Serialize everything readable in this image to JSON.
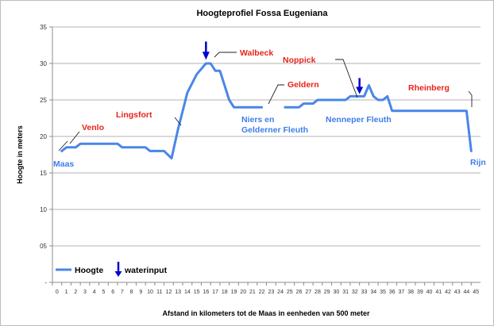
{
  "chart_data": {
    "type": "line",
    "title": "Hoogteprofiel Fossa Eugeniana",
    "xlabel": "Afstand in kilometers tot de Maas in eenheden van 500 meter",
    "ylabel": "Hoogte in meters",
    "xlim": [
      0,
      46
    ],
    "ylim": [
      0,
      35
    ],
    "x_ticks": [
      "0",
      "1",
      "2",
      "3",
      "4",
      "5",
      "6",
      "7",
      "8",
      "9",
      "10",
      "11",
      "12",
      "13",
      "14",
      "15",
      "16",
      "17",
      "18",
      "19",
      "20",
      "21",
      "22",
      "23",
      "24",
      "25",
      "26",
      "27",
      "28",
      "29",
      "30",
      "31",
      "32",
      "33",
      "34",
      "35",
      "36",
      "37",
      "38",
      "39",
      "40",
      "41",
      "42",
      "43",
      "44",
      "45"
    ],
    "y_ticks": [
      {
        "value": 0,
        "label": "-"
      },
      {
        "value": 5,
        "label": "05"
      },
      {
        "value": 10,
        "label": "10"
      },
      {
        "value": 15,
        "label": "15"
      },
      {
        "value": 20,
        "label": "20"
      },
      {
        "value": 25,
        "label": "25"
      },
      {
        "value": 30,
        "label": "30"
      },
      {
        "value": 35,
        "label": "35"
      }
    ],
    "grid": "horizontal",
    "line_color": "#4a86e8",
    "arrow_color": "#0000cc",
    "series": [
      {
        "name": "Hoogte",
        "segments": [
          [
            [
              1,
              18
            ],
            [
              1.5,
              18.5
            ],
            [
              2.5,
              18.5
            ],
            [
              3,
              19
            ],
            [
              7,
              19
            ],
            [
              7.5,
              18.5
            ],
            [
              10,
              18.5
            ],
            [
              10.5,
              18
            ],
            [
              12,
              18
            ],
            [
              12.8,
              17
            ],
            [
              13.5,
              21
            ],
            [
              14.5,
              26
            ],
            [
              15.5,
              28.5
            ],
            [
              16.5,
              30
            ],
            [
              17,
              30
            ],
            [
              17.5,
              29
            ],
            [
              18,
              29
            ],
            [
              19,
              25
            ],
            [
              19.5,
              24
            ],
            [
              22.5,
              24
            ]
          ],
          [
            [
              25,
              24
            ],
            [
              26.5,
              24
            ],
            [
              27,
              24.5
            ],
            [
              28,
              24.5
            ],
            [
              28.5,
              25
            ],
            [
              31.5,
              25
            ],
            [
              32,
              25.5
            ],
            [
              33.5,
              25.5
            ],
            [
              34,
              27
            ],
            [
              34.5,
              25.5
            ],
            [
              35,
              25
            ],
            [
              35.5,
              25
            ],
            [
              36,
              25.5
            ],
            [
              36.5,
              23.5
            ],
            [
              44.5,
              23.5
            ],
            [
              45,
              18
            ]
          ]
        ]
      }
    ],
    "waterinput_x": [
      16.5,
      33
    ],
    "places": [
      {
        "label": "Maas",
        "color": "blue"
      },
      {
        "label": "Venlo",
        "color": "red"
      },
      {
        "label": "Lingsfort",
        "color": "red"
      },
      {
        "label": "Walbeck",
        "color": "red"
      },
      {
        "label": "Geldern",
        "color": "red"
      },
      {
        "label": "Niers en",
        "color": "blue"
      },
      {
        "label": "Gelderner Fleuth",
        "color": "blue"
      },
      {
        "label": "Noppick",
        "color": "red"
      },
      {
        "label": "Nenneper Fleuth",
        "color": "blue"
      },
      {
        "label": "Rheinberg",
        "color": "red"
      },
      {
        "label": "Rijn",
        "color": "blue"
      }
    ],
    "legend": {
      "line_label": "Hoogte",
      "arrow_label": "waterinput",
      "position": "bottom-left"
    }
  }
}
